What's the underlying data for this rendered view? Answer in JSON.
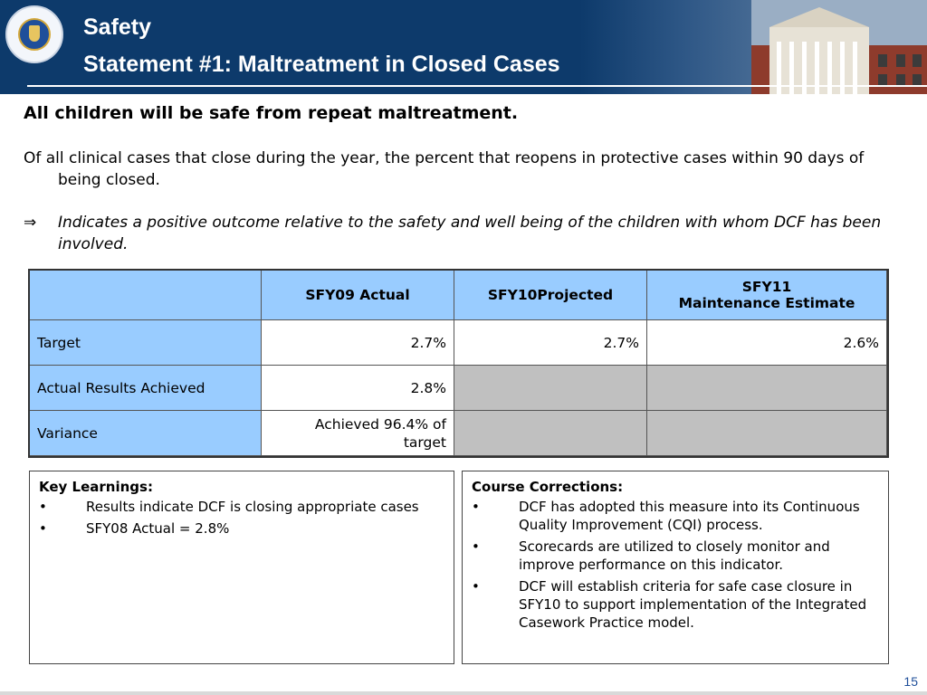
{
  "header": {
    "title": "Safety",
    "subtitle": "Statement #1:  Maltreatment in Closed Cases"
  },
  "statement": "All children will be safe from repeat maltreatment.",
  "definition": "Of all clinical cases that close during the year, the percent that reopens in protective cases within 90 days of being closed.",
  "indicator": {
    "symbol": "⇒",
    "text": "Indicates a positive outcome relative to the safety and well being of the children with whom DCF has been involved."
  },
  "table": {
    "headers": [
      "",
      "SFY09 Actual",
      "SFY10Projected",
      "SFY11 Maintenance Estimate"
    ],
    "header_sfy11_line1": "SFY11",
    "header_sfy11_line2": "Maintenance Estimate",
    "rows": [
      {
        "label": "Target",
        "sfy09": "2.7%",
        "sfy10": "2.7%",
        "sfy11": "2.6%"
      },
      {
        "label": "Actual Results Achieved",
        "sfy09": "2.8%",
        "sfy10": "",
        "sfy11": ""
      },
      {
        "label": "Variance",
        "sfy09": "Achieved 96.4% of target",
        "sfy10": "",
        "sfy11": ""
      }
    ],
    "colors": {
      "header_bg": "#99ccff",
      "na_bg": "#c0c0c0"
    }
  },
  "key_learnings": {
    "heading": "Key Learnings:",
    "items": [
      "Results indicate DCF is closing appropriate cases",
      "SFY08 Actual = 2.8%"
    ]
  },
  "course_corrections": {
    "heading": "Course Corrections:",
    "items": [
      "DCF has adopted this measure into its Continuous Quality Improvement (CQI) process.",
      "Scorecards are utilized to closely monitor and improve performance on this indicator.",
      "DCF will establish criteria for safe case closure in SFY10 to support implementation of the Integrated Casework Practice model."
    ]
  },
  "bullet": "•",
  "page_number": "15",
  "colors": {
    "header_bg": "#0d3a6b",
    "page_number": "#1f4f9a"
  }
}
